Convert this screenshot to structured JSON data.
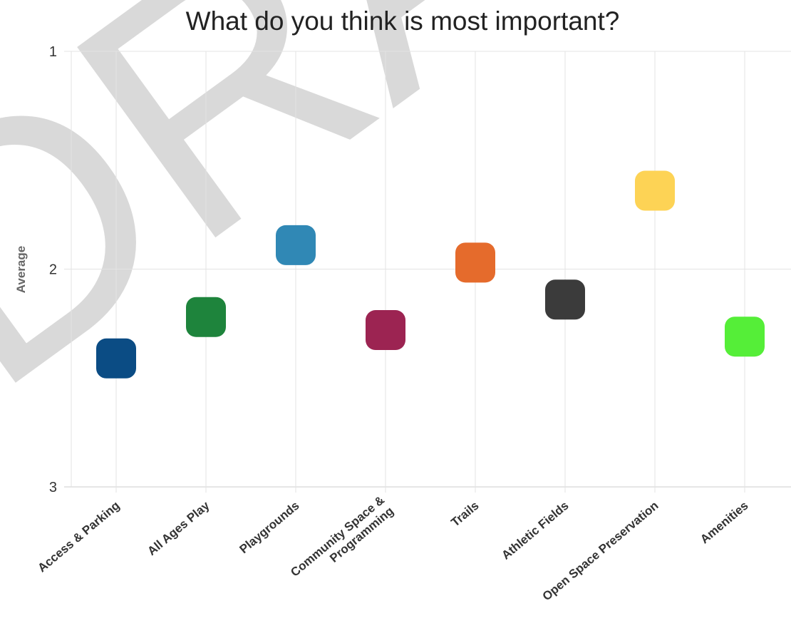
{
  "chart_data": {
    "type": "scatter",
    "title": "What do you think is most important?",
    "ylabel": "Average",
    "xlabel": "",
    "y_axis_reversed": true,
    "ylim": [
      1,
      3
    ],
    "yticks": [
      1,
      2,
      3
    ],
    "grid": true,
    "legend": "none",
    "marker": "rounded-square",
    "categories": [
      [
        "Access & Parking"
      ],
      [
        "All Ages Play"
      ],
      [
        "Playgrounds"
      ],
      [
        "Community Space &",
        "Programming"
      ],
      [
        "Trails"
      ],
      [
        "Athletic Fields"
      ],
      [
        "Open Space Preservation"
      ],
      [
        "Amenities"
      ]
    ],
    "values": [
      2.41,
      2.22,
      1.89,
      2.28,
      1.97,
      2.14,
      1.64,
      2.31
    ],
    "colors": [
      "#0b4c84",
      "#1e843c",
      "#3088b5",
      "#9c2452",
      "#e56b2c",
      "#3b3b3b",
      "#fdd355",
      "#55ee38"
    ]
  },
  "watermark": {
    "text": "DRAFT",
    "color": "#d9d9d9"
  }
}
